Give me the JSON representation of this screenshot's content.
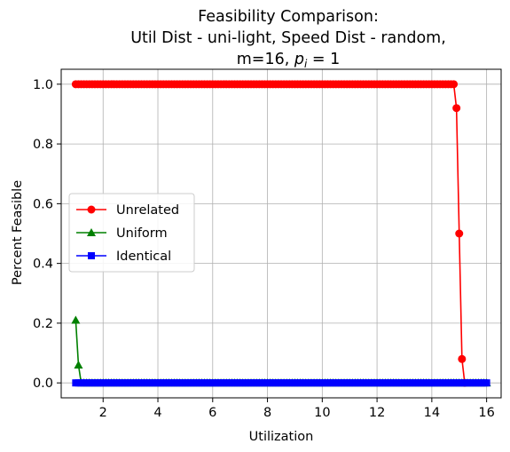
{
  "chart_data": {
    "type": "line",
    "title_lines": [
      "Feasibility Comparison:",
      "Util Dist - uni-light, Speed Dist - random,",
      "m=16, ",
      "p",
      "i",
      " = 1"
    ],
    "xlabel": "Utilization",
    "ylabel": "Percent Feasible",
    "xlim": [
      0.47,
      16.53
    ],
    "ylim": [
      -0.05,
      1.05
    ],
    "xticks": [
      2,
      4,
      6,
      8,
      10,
      12,
      14,
      16
    ],
    "xtick_labels": [
      "2",
      "4",
      "6",
      "8",
      "10",
      "12",
      "14",
      "16"
    ],
    "yticks": [
      0.0,
      0.2,
      0.4,
      0.6,
      0.8,
      1.0
    ],
    "ytick_labels": [
      "0.0",
      "0.2",
      "0.4",
      "0.6",
      "0.8",
      "1.0"
    ],
    "grid": true,
    "legend_position": "center-left",
    "x_start": 1.0,
    "x_step": 0.1,
    "x_count": 151,
    "series": [
      {
        "name": "Unrelated",
        "color": "#ff0000",
        "marker": "circle",
        "values_rule": "value 1.0 for x <= 14.8",
        "plateau_value": 1.0,
        "plateau_end": 14.8,
        "tail": [
          [
            14.9,
            0.92
          ],
          [
            15.0,
            0.5
          ],
          [
            15.1,
            0.08
          ],
          [
            15.2,
            0.0
          ]
        ]
      },
      {
        "name": "Uniform",
        "color": "#008000",
        "marker": "triangle",
        "values_rule": "0.0 after listed points",
        "head": [
          [
            1.0,
            0.21
          ],
          [
            1.1,
            0.06
          ],
          [
            1.2,
            0.0
          ]
        ],
        "plateau_value": 0.0
      },
      {
        "name": "Identical",
        "color": "#0000ff",
        "marker": "square",
        "values_rule": "0.0 everywhere",
        "plateau_value": 0.0
      }
    ]
  }
}
